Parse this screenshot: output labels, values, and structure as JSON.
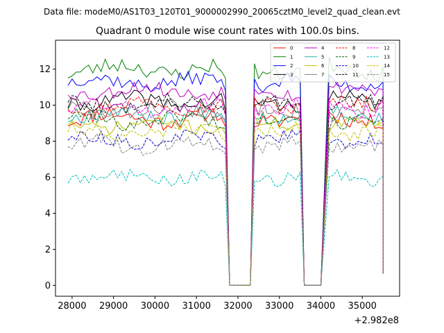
{
  "figure": {
    "suptitle": "Data file: modeM0/AS1T03_120T01_9000002990_20065cztM0_level2_quad_clean.evt"
  },
  "chart_data": {
    "type": "line",
    "title": "Quadrant 0 module wise count rates with 100.0s bins.",
    "xlabel": "",
    "ylabel": "",
    "x_offset_label": "+2.982e8",
    "xlim": [
      27600,
      35900
    ],
    "ylim": [
      -0.6,
      13.6
    ],
    "xticks": [
      28000,
      29000,
      30000,
      31000,
      32000,
      33000,
      34000,
      35000
    ],
    "xtick_labels": [
      "28000",
      "29000",
      "30000",
      "31000",
      "32000",
      "33000",
      "34000",
      "35000"
    ],
    "yticks": [
      0,
      2,
      4,
      6,
      8,
      10,
      12
    ],
    "ytick_labels": [
      "0",
      "2",
      "4",
      "6",
      "8",
      "10",
      "12"
    ],
    "grid": false,
    "legend_position": "top-right",
    "segments": [
      {
        "start": 27900,
        "end": 31700,
        "step": 100
      },
      {
        "start": 32400,
        "end": 33500,
        "step": 100
      },
      {
        "start": 34200,
        "end": 35500,
        "step": 100
      }
    ],
    "gaps": [
      {
        "flat_start": 31800,
        "flat_end": 32300,
        "end_value": 0
      },
      {
        "flat_start": 33600,
        "flat_end": 34000,
        "end_value": 0
      }
    ],
    "tail": {
      "x": 35500,
      "value": 0.65
    },
    "series": [
      {
        "name": "0",
        "color": "#ff0000",
        "dash": "solid",
        "mean": 9.3,
        "noise": 0.45,
        "seed": 11
      },
      {
        "name": "1",
        "color": "#008000",
        "dash": "solid",
        "mean": 12.0,
        "noise": 0.45,
        "seed": 23
      },
      {
        "name": "2",
        "color": "#0000ff",
        "dash": "solid",
        "mean": 11.3,
        "noise": 0.4,
        "seed": 37
      },
      {
        "name": "3",
        "color": "#000000",
        "dash": "solid",
        "mean": 10.2,
        "noise": 0.4,
        "seed": 41
      },
      {
        "name": "4",
        "color": "#bf00bf",
        "dash": "solid",
        "mean": 10.8,
        "noise": 0.4,
        "seed": 53
      },
      {
        "name": "5",
        "color": "#20b2aa",
        "dash": "solid",
        "mean": 9.5,
        "noise": 0.4,
        "seed": 67
      },
      {
        "name": "6",
        "color": "#bfbf00",
        "dash": "solid",
        "mean": 8.9,
        "noise": 0.35,
        "seed": 71
      },
      {
        "name": "7",
        "color": "#808080",
        "dash": "solid",
        "mean": 9.7,
        "noise": 0.45,
        "seed": 83
      },
      {
        "name": "8",
        "color": "#ff0000",
        "dash": "dashed",
        "mean": 10.0,
        "noise": 0.4,
        "seed": 97
      },
      {
        "name": "9",
        "color": "#006400",
        "dash": "dashed",
        "mean": 9.2,
        "noise": 0.4,
        "seed": 101
      },
      {
        "name": "10",
        "color": "#0000cd",
        "dash": "dashed",
        "mean": 8.1,
        "noise": 0.35,
        "seed": 113
      },
      {
        "name": "11",
        "color": "#000000",
        "dash": "dashed",
        "mean": 10.1,
        "noise": 0.4,
        "seed": 127
      },
      {
        "name": "12",
        "color": "#ff00ff",
        "dash": "dashed",
        "mean": 9.9,
        "noise": 0.4,
        "seed": 131
      },
      {
        "name": "13",
        "color": "#00bfbf",
        "dash": "dashed",
        "mean": 6.0,
        "noise": 0.35,
        "seed": 149
      },
      {
        "name": "14",
        "color": "#bfbf00",
        "dash": "dashed",
        "mean": 8.5,
        "noise": 0.4,
        "seed": 151
      },
      {
        "name": "15",
        "color": "#808080",
        "dash": "dashed",
        "mean": 7.8,
        "noise": 0.4,
        "seed": 163
      }
    ]
  }
}
